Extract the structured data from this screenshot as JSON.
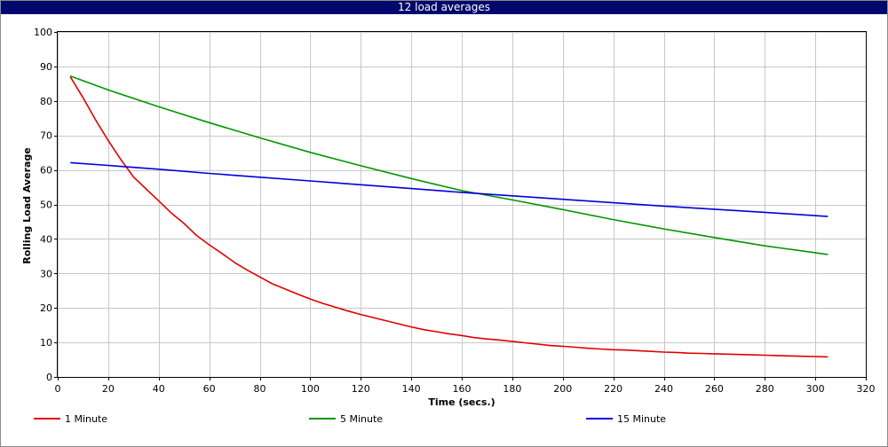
{
  "window": {
    "title": "12 load averages"
  },
  "colors": {
    "title_bar": "#00086b",
    "grid": "#c8c8c8",
    "one_minute": "#e00000",
    "five_minute": "#009600",
    "fifteen_minute": "#0000dc"
  },
  "chart_data": {
    "type": "line",
    "title": "12 load averages",
    "xlabel": "Time (secs.)",
    "ylabel": "Rolling Load Average",
    "xlim": [
      0,
      320
    ],
    "ylim": [
      0,
      100
    ],
    "xticks": [
      0,
      20,
      40,
      60,
      80,
      100,
      120,
      140,
      160,
      180,
      200,
      220,
      240,
      260,
      280,
      300,
      320
    ],
    "yticks": [
      0,
      10,
      20,
      30,
      40,
      50,
      60,
      70,
      80,
      90,
      100
    ],
    "grid": true,
    "legend_position": "bottom",
    "series": [
      {
        "name": "1 Minute",
        "color": "#e00000",
        "x": [
          5,
          10,
          15,
          20,
          25,
          30,
          35,
          40,
          45,
          50,
          55,
          60,
          65,
          70,
          75,
          80,
          85,
          90,
          95,
          100,
          105,
          110,
          115,
          120,
          125,
          130,
          135,
          140,
          145,
          150,
          155,
          160,
          165,
          170,
          175,
          180,
          185,
          190,
          195,
          200,
          205,
          210,
          215,
          220,
          225,
          230,
          235,
          240,
          245,
          250,
          255,
          260,
          265,
          270,
          275,
          280,
          285,
          290,
          295,
          300,
          305
        ],
        "y": [
          87,
          81,
          74.5,
          68.5,
          63,
          58,
          54.5,
          51,
          47.5,
          44.5,
          41,
          38.3,
          35.8,
          33.2,
          31,
          29,
          27,
          25.5,
          24,
          22.6,
          21.3,
          20.2,
          19.1,
          18.1,
          17.2,
          16.3,
          15.4,
          14.5,
          13.7,
          13.1,
          12.5,
          12,
          11.4,
          11,
          10.7,
          10.3,
          9.9,
          9.5,
          9.1,
          8.9,
          8.6,
          8.3,
          8.1,
          7.9,
          7.8,
          7.6,
          7.4,
          7.2,
          7.1,
          6.9,
          6.8,
          6.7,
          6.6,
          6.5,
          6.4,
          6.3,
          6.2,
          6.1,
          6.0,
          5.9,
          5.8
        ]
      },
      {
        "name": "5 Minute",
        "color": "#009600",
        "x": [
          5,
          20,
          40,
          60,
          80,
          100,
          120,
          140,
          160,
          180,
          200,
          220,
          240,
          260,
          280,
          305
        ],
        "y": [
          87.2,
          83.2,
          78.3,
          73.7,
          69.3,
          65.1,
          61.2,
          57.5,
          54.0,
          51.3,
          48.5,
          45.6,
          42.9,
          40.4,
          38.0,
          35.5
        ]
      },
      {
        "name": "15 Minute",
        "color": "#0000dc",
        "x": [
          5,
          20,
          40,
          60,
          80,
          100,
          120,
          140,
          160,
          180,
          200,
          220,
          240,
          260,
          280,
          305
        ],
        "y": [
          62.1,
          61.3,
          60.2,
          59.0,
          57.9,
          56.8,
          55.7,
          54.6,
          53.5,
          52.5,
          51.5,
          50.5,
          49.5,
          48.6,
          47.7,
          46.5
        ]
      }
    ]
  }
}
